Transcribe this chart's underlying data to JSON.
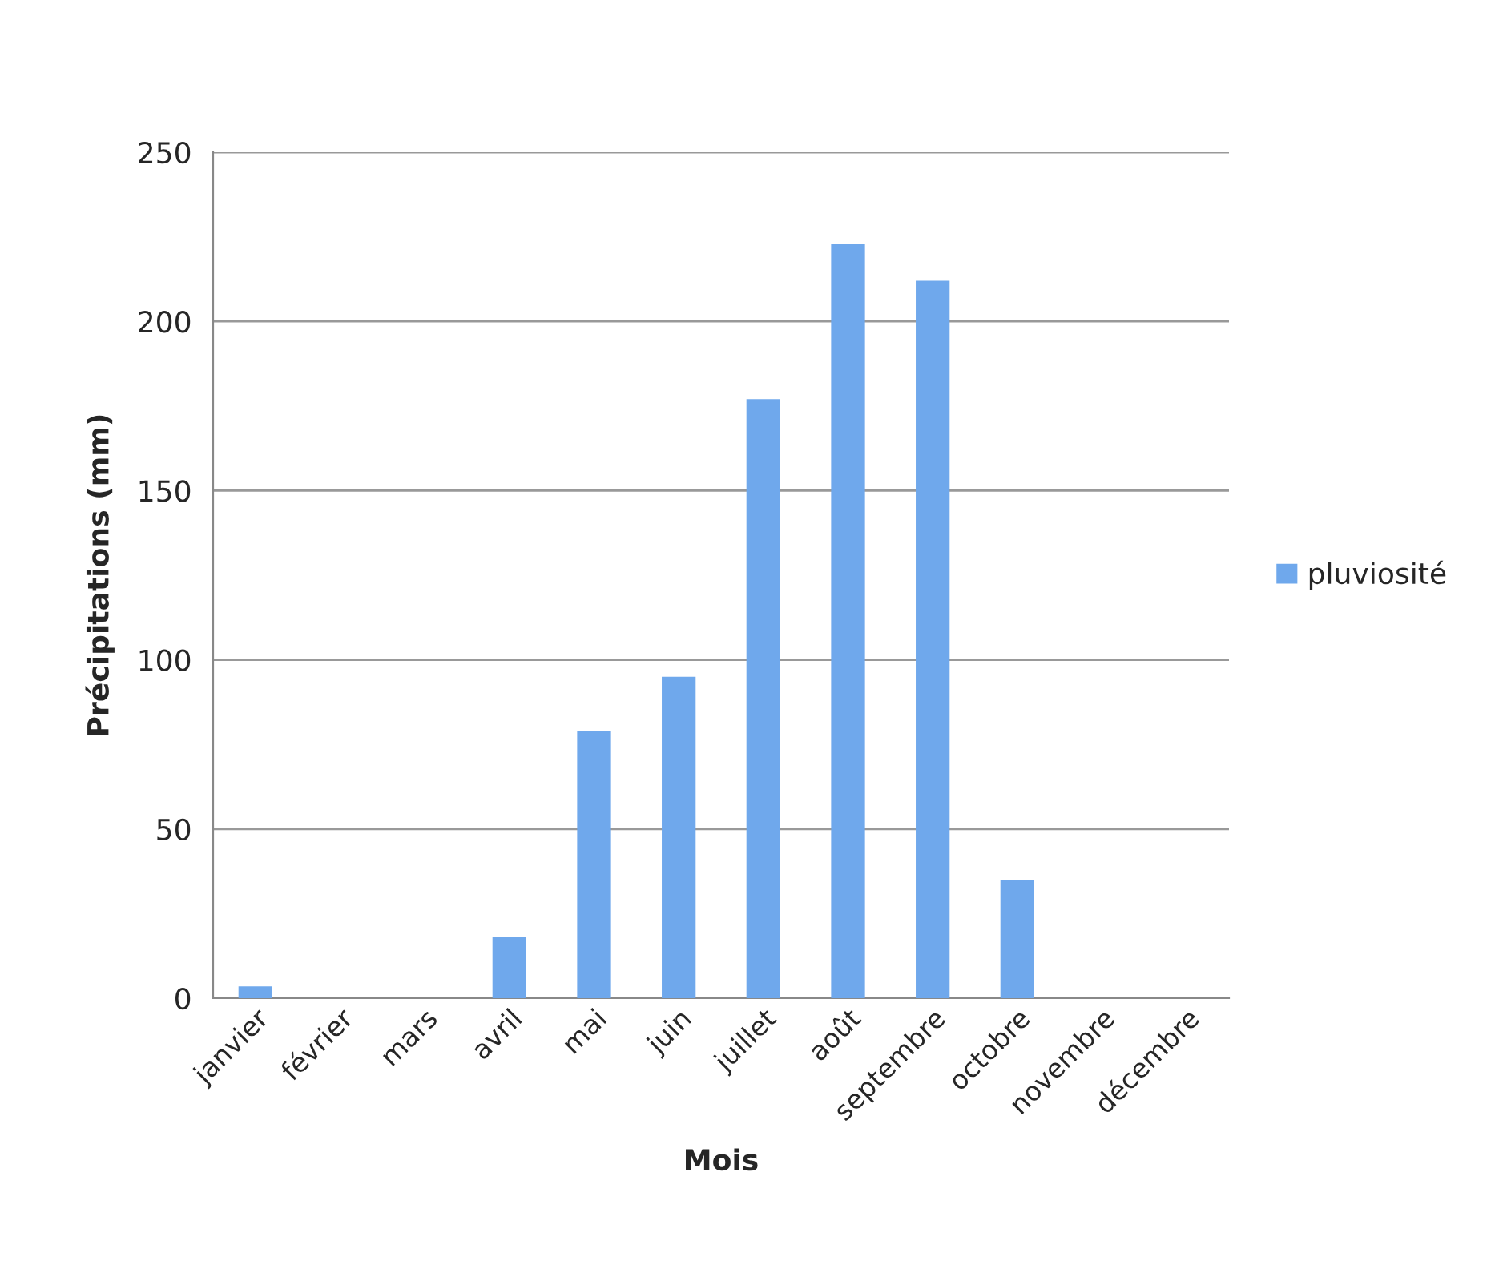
{
  "chart_data": {
    "type": "bar",
    "xlabel": "Mois",
    "ylabel": "Précipitations (mm)",
    "categories": [
      "janvier",
      "février",
      "mars",
      "avril",
      "mai",
      "juin",
      "juillet",
      "août",
      "septembre",
      "octobre",
      "novembre",
      "décembre"
    ],
    "series": [
      {
        "name": "pluviosité",
        "color": "#6fa8ec",
        "values": [
          3.5,
          0,
          0,
          18,
          79,
          95,
          177,
          223,
          212,
          35,
          0,
          0
        ]
      }
    ],
    "ylim": [
      0,
      250
    ],
    "yticks": [
      0,
      50,
      100,
      150,
      200,
      250
    ],
    "grid": "y",
    "legend": "right"
  }
}
